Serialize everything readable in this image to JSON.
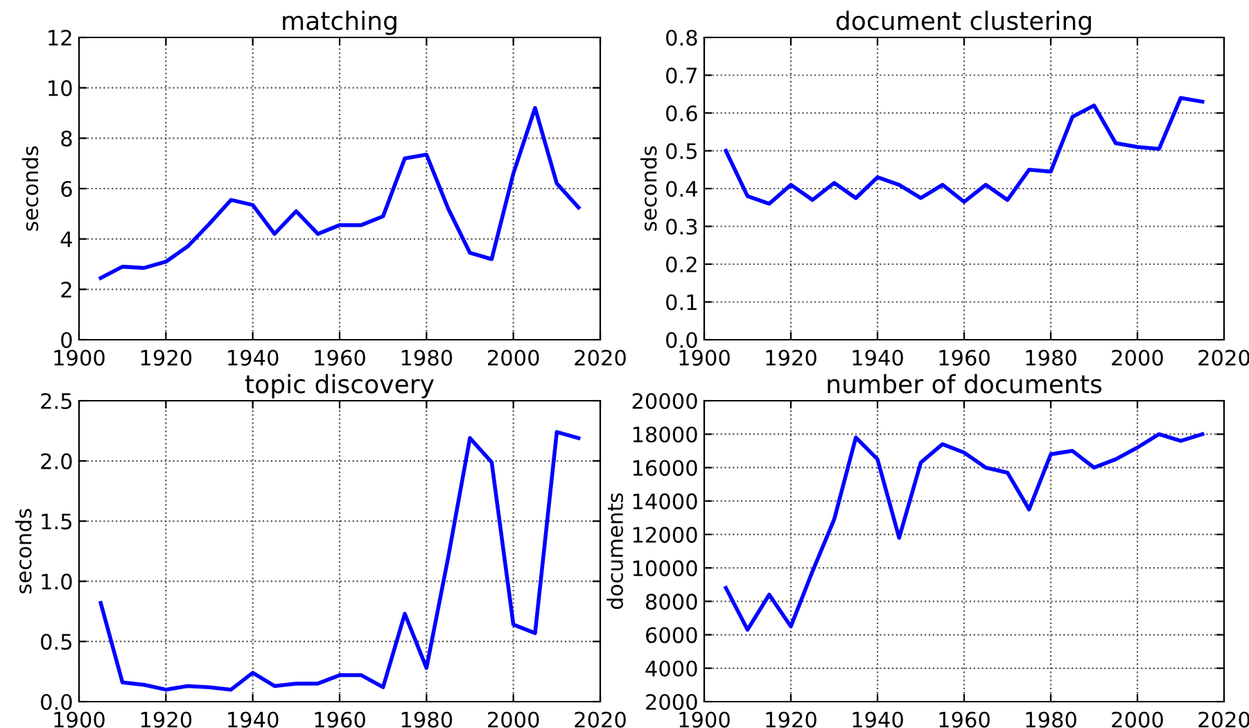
{
  "chart_data": [
    {
      "type": "line",
      "title": "matching",
      "ylabel": "seconds",
      "x": [
        1905,
        1910,
        1915,
        1920,
        1925,
        1930,
        1935,
        1940,
        1945,
        1950,
        1955,
        1960,
        1965,
        1970,
        1975,
        1980,
        1985,
        1990,
        1995,
        2000,
        2005,
        2010,
        2015
      ],
      "series": [
        {
          "color": "#0000ff",
          "values": [
            2.45,
            2.9,
            2.85,
            3.1,
            3.7,
            4.6,
            5.55,
            5.35,
            4.2,
            5.1,
            4.2,
            4.55,
            4.55,
            4.9,
            7.2,
            7.35,
            5.2,
            3.45,
            3.2,
            6.6,
            9.2,
            6.2,
            5.25
          ]
        }
      ],
      "xlim": [
        1900,
        2020
      ],
      "xticks": [
        1900,
        1920,
        1940,
        1960,
        1980,
        2000,
        2020
      ],
      "ylim": [
        0,
        12
      ],
      "yticks": [
        0,
        2,
        4,
        6,
        8,
        10,
        12
      ],
      "grid": true
    },
    {
      "type": "line",
      "title": "document clustering",
      "ylabel": "seconds",
      "x": [
        1905,
        1910,
        1915,
        1920,
        1925,
        1930,
        1935,
        1940,
        1945,
        1950,
        1955,
        1960,
        1965,
        1970,
        1975,
        1980,
        1985,
        1990,
        1995,
        2000,
        2005,
        2010,
        2015
      ],
      "series": [
        {
          "color": "#0000ff",
          "values": [
            0.5,
            0.38,
            0.36,
            0.41,
            0.37,
            0.415,
            0.375,
            0.43,
            0.41,
            0.375,
            0.41,
            0.365,
            0.41,
            0.37,
            0.45,
            0.445,
            0.59,
            0.62,
            0.52,
            0.51,
            0.505,
            0.64,
            0.63
          ]
        }
      ],
      "xlim": [
        1900,
        2020
      ],
      "xticks": [
        1900,
        1920,
        1940,
        1960,
        1980,
        2000,
        2020
      ],
      "ylim": [
        0,
        0.8
      ],
      "yticks": [
        {
          "value": 0,
          "label": "0.0"
        },
        {
          "value": 0.1,
          "label": "0.1"
        },
        {
          "value": 0.2,
          "label": "0.2"
        },
        {
          "value": 0.3,
          "label": "0.3"
        },
        {
          "value": 0.4,
          "label": "0.4"
        },
        {
          "value": 0.5,
          "label": "0.5"
        },
        {
          "value": 0.6,
          "label": "0.6"
        },
        {
          "value": 0.7,
          "label": "0.7"
        },
        {
          "value": 0.8,
          "label": "0.8"
        }
      ],
      "grid": true
    },
    {
      "type": "line",
      "title": "topic discovery",
      "ylabel": "seconds",
      "x": [
        1905,
        1910,
        1915,
        1920,
        1925,
        1930,
        1935,
        1940,
        1945,
        1950,
        1955,
        1960,
        1965,
        1970,
        1975,
        1980,
        1985,
        1990,
        1995,
        2000,
        2005,
        2010,
        2015
      ],
      "series": [
        {
          "color": "#0000ff",
          "values": [
            0.82,
            0.16,
            0.14,
            0.1,
            0.13,
            0.12,
            0.1,
            0.24,
            0.13,
            0.15,
            0.15,
            0.22,
            0.22,
            0.12,
            0.73,
            0.28,
            1.2,
            2.19,
            1.99,
            0.64,
            0.57,
            2.24,
            2.19
          ]
        }
      ],
      "xlim": [
        1900,
        2020
      ],
      "xticks": [
        1900,
        1920,
        1940,
        1960,
        1980,
        2000,
        2020
      ],
      "ylim": [
        0,
        2.5
      ],
      "yticks": [
        {
          "value": 0,
          "label": "0.0"
        },
        {
          "value": 0.5,
          "label": "0.5"
        },
        {
          "value": 1,
          "label": "1.0"
        },
        {
          "value": 1.5,
          "label": "1.5"
        },
        {
          "value": 2,
          "label": "2.0"
        },
        {
          "value": 2.5,
          "label": "2.5"
        }
      ],
      "grid": true
    },
    {
      "type": "line",
      "title": "number of documents",
      "ylabel": "documents",
      "x": [
        1905,
        1910,
        1915,
        1920,
        1925,
        1930,
        1935,
        1940,
        1945,
        1950,
        1955,
        1960,
        1965,
        1970,
        1975,
        1980,
        1985,
        1990,
        1995,
        2000,
        2005,
        2010,
        2015
      ],
      "series": [
        {
          "color": "#0000ff",
          "values": [
            8800,
            6300,
            8400,
            6500,
            9800,
            12900,
            17800,
            16500,
            11800,
            16300,
            17400,
            16900,
            16000,
            15700,
            13500,
            16800,
            17000,
            16000,
            16500,
            17200,
            18000,
            17600,
            18000
          ]
        }
      ],
      "xlim": [
        1900,
        2020
      ],
      "xticks": [
        1900,
        1920,
        1940,
        1960,
        1980,
        2000,
        2020
      ],
      "ylim": [
        2000,
        20000
      ],
      "yticks": [
        2000,
        4000,
        6000,
        8000,
        10000,
        12000,
        14000,
        16000,
        18000,
        20000
      ],
      "grid": true
    }
  ]
}
